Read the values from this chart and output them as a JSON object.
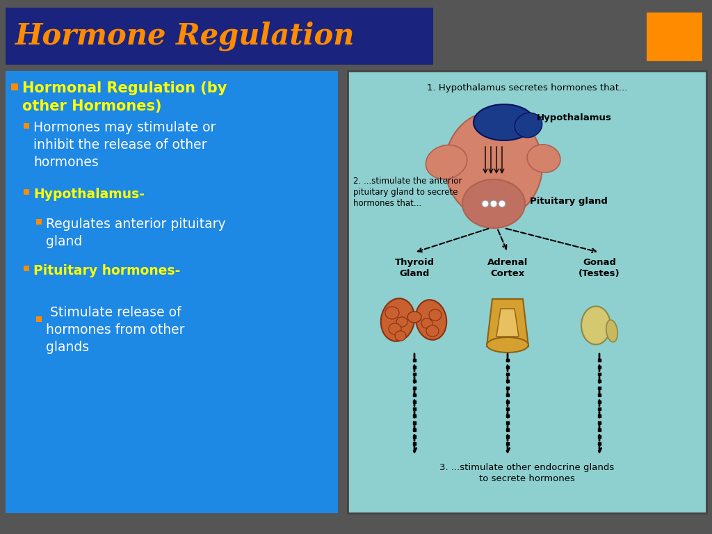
{
  "title": "Hormone Regulation",
  "title_color": "#FF8C00",
  "title_bg": "#1a237e",
  "slide_bg": "#555555",
  "left_panel_bg": "#1e88e5",
  "bullet_color": "#FF8C00",
  "bullet1_bold": "Hormonal Regulation",
  "bullet1_rest": " (by\nother Hormones)",
  "bullet1_color": "#FFFF00",
  "sub1_text": "Hormones may stimulate or\ninhibit the release of other\nhormones",
  "sub1_color": "#FFFFFF",
  "sub2_text": "Hypothalamus-",
  "sub2_color": "#FFFF00",
  "sub3_text": "Regulates anterior pituitary\ngland",
  "sub3_color": "#FFFFFF",
  "sub4_text": "Pituitary hormones-",
  "sub4_color": "#FFFF00",
  "sub5_text": " Stimulate release of\nhormones from other\nglands",
  "sub5_color": "#FFFFFF",
  "diagram_bg": "#8ecfcf",
  "diagram_border": "#444444",
  "orange_rect_color": "#FF8C00",
  "anno1": "1. Hypothalamus secretes hormones that...",
  "anno2": "2. ...stimulate the anterior\npituitary gland to secrete\nhormones that...",
  "anno3": "Hypothalamus",
  "anno4": "Pituitary gland",
  "anno5": "Thyroid\nGland",
  "anno6": "Adrenal\nCortex",
  "anno7": "Gonad\n(Testes)",
  "anno8": "3. ...stimulate other endocrine glands\nto secrete hormones",
  "hyp_color": "#1a3a8a",
  "brain_color": "#d4826a",
  "brain_edge": "#b06050",
  "thyroid_color": "#c86030",
  "thyroid_edge": "#8a3010",
  "adrenal_color": "#d4a030",
  "adrenal_inner": "#e8c060",
  "adrenal_edge": "#906010",
  "gonad_color": "#d4c870",
  "gonad_edge": "#908840"
}
